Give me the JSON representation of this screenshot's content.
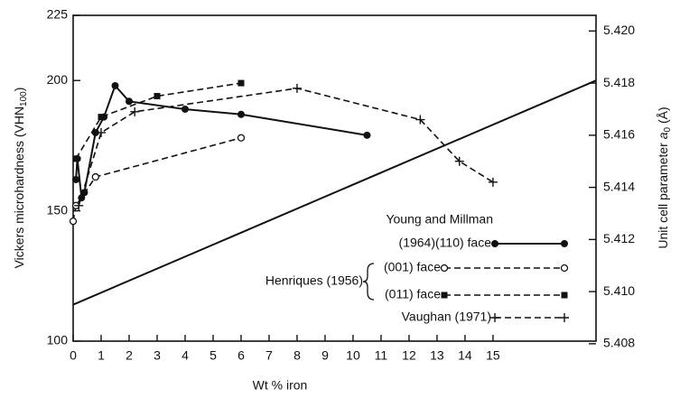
{
  "chart_data": {
    "type": "line",
    "xlabel": "Wt % iron",
    "ylabel": [
      "Vickers microhardness (VHN",
      "100",
      ")"
    ],
    "y2label": [
      "Unit cell parameter ",
      "a",
      "0",
      " (Å)"
    ],
    "xlim": [
      0,
      18.68
    ],
    "xticks": [
      0,
      1,
      2,
      3,
      4,
      5,
      6,
      7,
      8,
      9,
      10,
      11,
      12,
      13,
      14,
      15
    ],
    "ylim": [
      100,
      225
    ],
    "yticks": [
      100,
      150,
      200,
      225
    ],
    "y2lim": [
      5.4081,
      5.4206
    ],
    "y2ticks": [
      {
        "value": 5.408,
        "label": "5.408"
      },
      {
        "value": 5.41,
        "label": "5.410"
      },
      {
        "value": 5.412,
        "label": "5.412"
      },
      {
        "value": 5.414,
        "label": "5.414"
      },
      {
        "value": 5.416,
        "label": "5.416"
      },
      {
        "value": 5.418,
        "label": "5.418"
      },
      {
        "value": 5.42,
        "label": "5.420"
      }
    ],
    "legend_group": "Henriques (1956)",
    "series": [
      {
        "name": [
          "Young and Millman",
          "(1964)(110) face"
        ],
        "color": "#111",
        "dash": "solid",
        "marker": "filled-circle",
        "x": [
          0.1,
          0.15,
          0.3,
          0.4,
          0.8,
          1.1,
          1.5,
          2,
          4,
          6,
          10.5
        ],
        "values": [
          162,
          170,
          155,
          157,
          180,
          186,
          198,
          192,
          189,
          187,
          179
        ]
      },
      {
        "name": "(001) face",
        "color": "#111",
        "dash": "dashed",
        "marker": "open-circle",
        "group": true,
        "x": [
          0,
          0.1,
          0.8,
          6
        ],
        "values": [
          146,
          152,
          163,
          178
        ]
      },
      {
        "name": "(011) face",
        "color": "#111",
        "dash": "dashed",
        "marker": "filled-square",
        "group": true,
        "x": [
          0.1,
          1,
          3,
          6
        ],
        "values": [
          170,
          186,
          194,
          199
        ]
      },
      {
        "name": "Vaughan (1971)",
        "color": "#111",
        "dash": "dashed",
        "marker": "plus",
        "x": [
          0.2,
          1,
          2.2,
          8,
          12.4,
          13.8,
          15
        ],
        "values": [
          152,
          180,
          188,
          197,
          185,
          169,
          161
        ]
      },
      {
        "color": "#111",
        "dash": "solid",
        "marker": "none",
        "axis": "y2",
        "x": [
          0,
          18.68
        ],
        "values": [
          5.4095,
          5.4181
        ]
      }
    ]
  }
}
